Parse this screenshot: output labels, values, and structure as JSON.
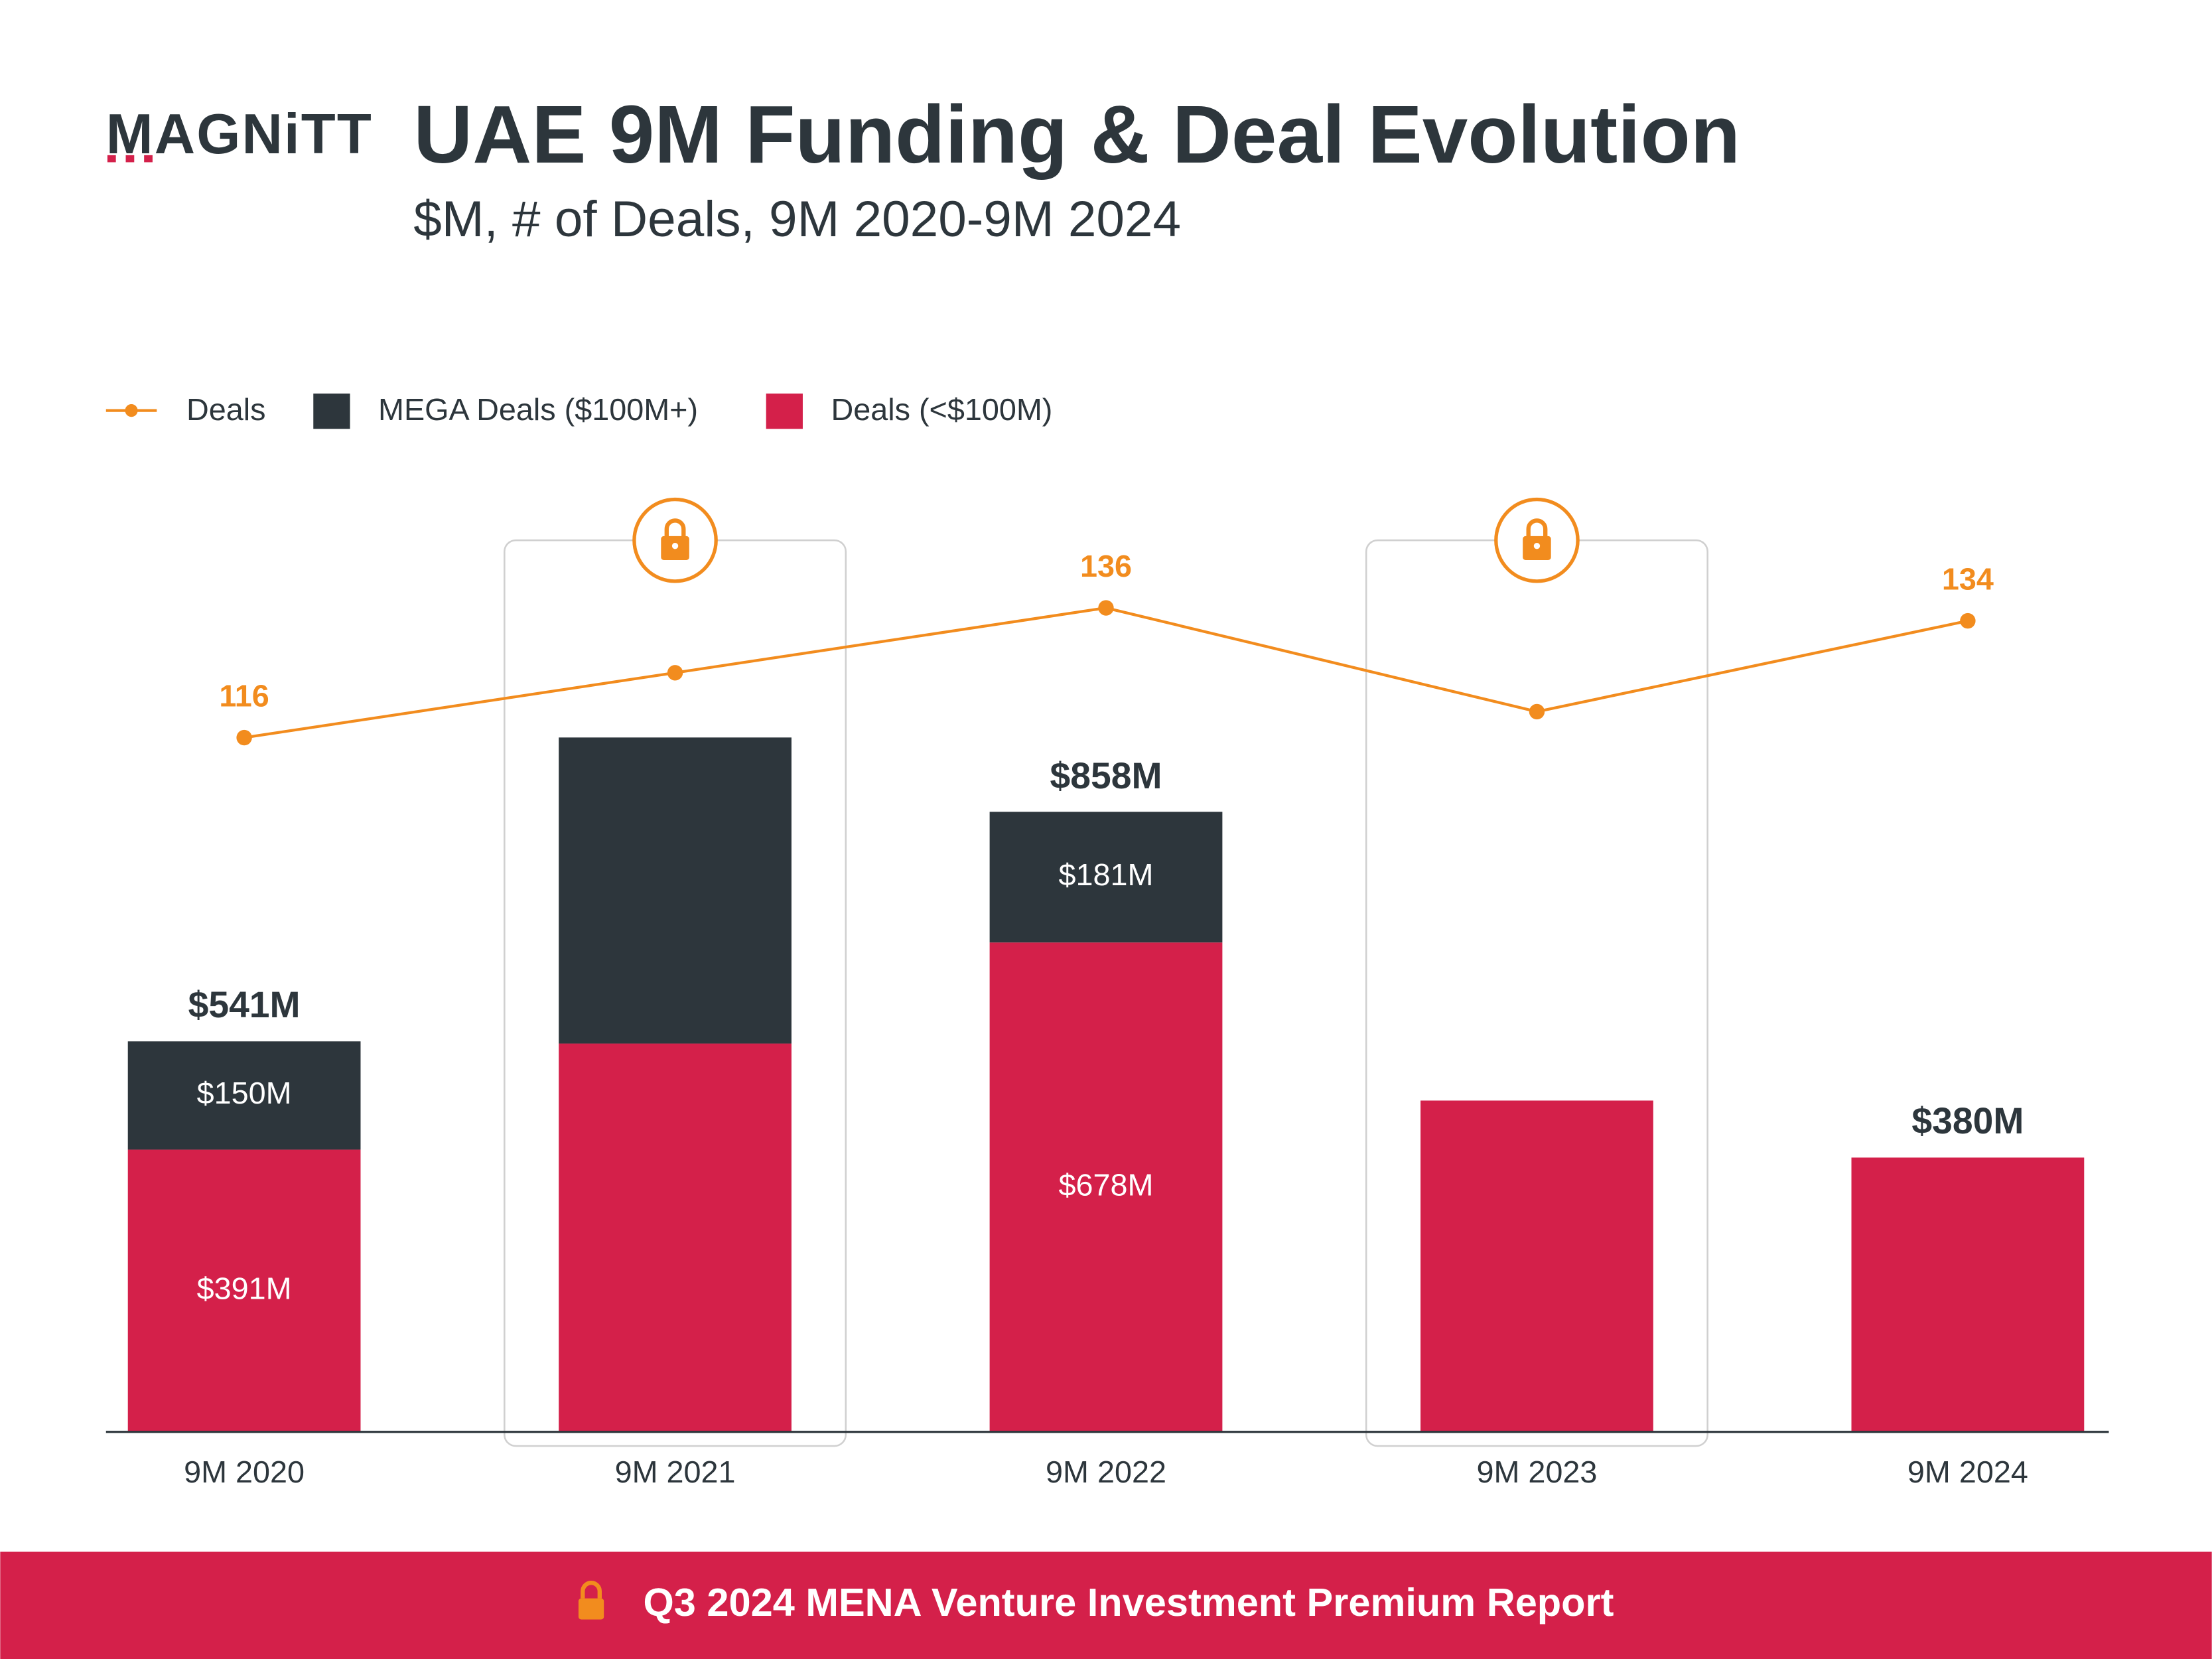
{
  "logo": "MAGNiTT",
  "chart_data": {
    "type": "bar-line",
    "title": "UAE 9M Funding & Deal Evolution",
    "subtitle": "$M, # of Deals, 9M 2020-9M 2024",
    "categories": [
      "9M 2020",
      "9M 2021",
      "9M 2022",
      "9M 2023",
      "9M 2024"
    ],
    "locked": [
      false,
      true,
      false,
      true,
      false
    ],
    "series": [
      {
        "name": "Deals",
        "type": "line",
        "axis": "y2",
        "color": "#f28c1e",
        "values": [
          116,
          126,
          136,
          120,
          134
        ],
        "value_labels": [
          "116",
          null,
          "136",
          null,
          "134"
        ]
      },
      {
        "name": "MEGA Deals ($100M+)",
        "type": "bar",
        "color": "#2d363c",
        "values": [
          150,
          424,
          181,
          0,
          0
        ],
        "value_labels": [
          "$150M",
          null,
          "$181M",
          null,
          null
        ]
      },
      {
        "name": "Deals (<$100M)",
        "type": "bar",
        "color": "#d4204a",
        "values": [
          391,
          538,
          678,
          459,
          380
        ],
        "value_labels": [
          "$391M",
          null,
          "$678M",
          null,
          null
        ]
      }
    ],
    "totals": [
      541,
      null,
      858,
      null,
      380
    ],
    "total_labels": [
      "$541M",
      null,
      "$858M",
      null,
      "$380M"
    ],
    "ylim": [
      0,
      1200
    ],
    "y2lim": [
      9,
      142.5
    ],
    "footer": "Q3 2024 MENA Venture Investment Premium Report"
  }
}
